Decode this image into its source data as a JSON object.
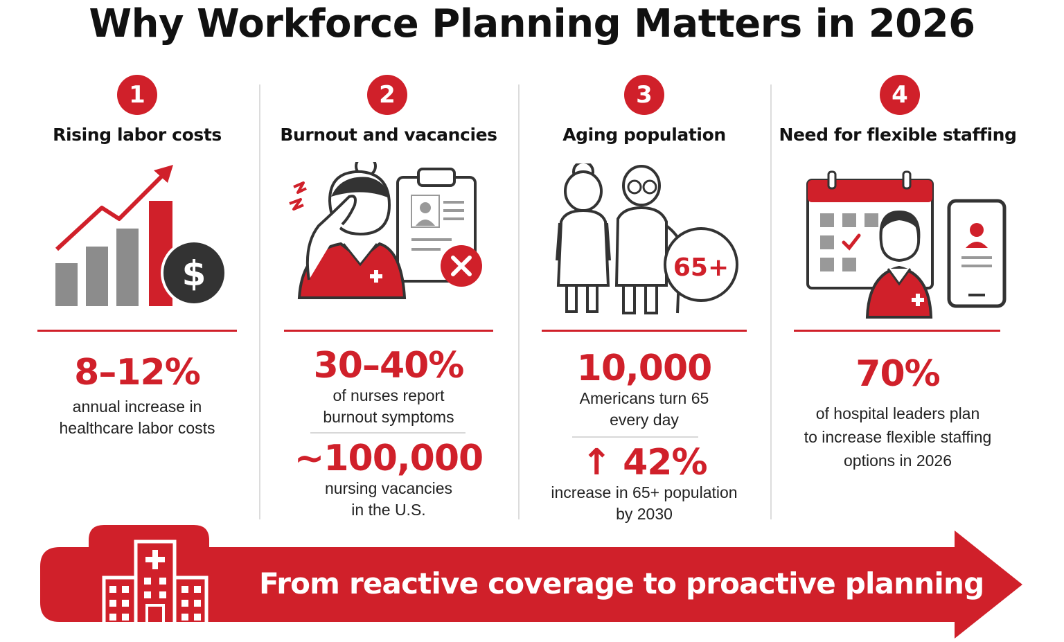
{
  "title": "Why Workforce Planning Matters in 2026",
  "colors": {
    "accent": "#d0202a",
    "gray": "#888888",
    "dark": "#333333"
  },
  "columns": [
    {
      "number": "1",
      "heading": "Rising labor costs",
      "icon": "rising-cost-chart-icon",
      "stats": [
        {
          "value": "8–12%",
          "lines": [
            "annual increase in",
            "healthcare labor costs"
          ]
        }
      ]
    },
    {
      "number": "2",
      "heading": "Burnout and vacancies",
      "icon": "stressed-nurse-clipboard-icon",
      "stats": [
        {
          "value": "30–40%",
          "lines": [
            "of nurses report",
            "burnout symptoms"
          ]
        },
        {
          "value": "~100,000",
          "lines": [
            "nursing vacancies",
            "in the U.S."
          ]
        }
      ]
    },
    {
      "number": "3",
      "heading": "Aging population",
      "icon": "elderly-couple-icon",
      "badge_text": "65+",
      "stats": [
        {
          "value": "10,000",
          "lines": [
            "Americans turn 65",
            "every day"
          ]
        },
        {
          "value": "↑ 42%",
          "lines": [
            "increase in 65+ population",
            "by 2030"
          ]
        }
      ]
    },
    {
      "number": "4",
      "heading": "Need for flexible staffing",
      "icon": "calendar-nurse-phone-icon",
      "stats": [
        {
          "value": "70%",
          "lines": [
            "of hospital leaders plan",
            "to increase flexible staffing",
            "options in 2026"
          ]
        }
      ]
    }
  ],
  "banner": {
    "icon": "hospital-icon",
    "text": "From reactive coverage to proactive planning"
  }
}
